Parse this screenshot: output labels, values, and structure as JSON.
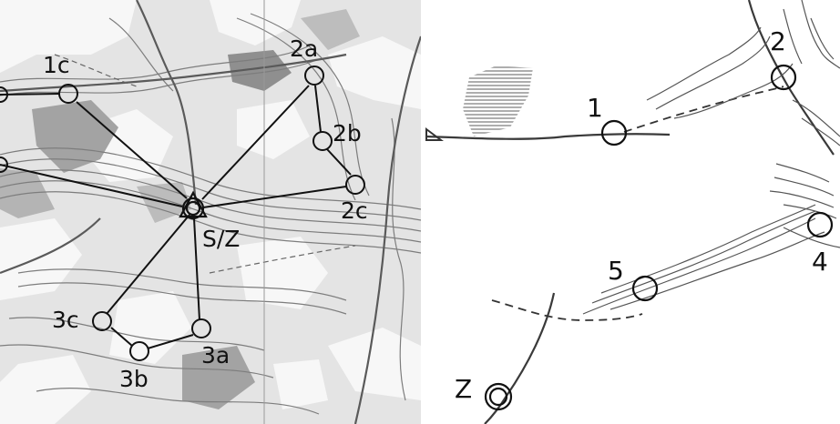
{
  "left_map": {
    "controls": [
      {
        "id": "1c",
        "label": "1c"
      },
      {
        "id": "2a",
        "label": "2a"
      },
      {
        "id": "2b",
        "label": "2b"
      },
      {
        "id": "2c",
        "label": "2c"
      },
      {
        "id": "3a",
        "label": "3a"
      },
      {
        "id": "3b",
        "label": "3b"
      },
      {
        "id": "3c",
        "label": "3c"
      }
    ],
    "start_finish_label": "S/Z"
  },
  "right_map": {
    "controls": [
      {
        "id": "1",
        "label": "1"
      },
      {
        "id": "2",
        "label": "2"
      },
      {
        "id": "4",
        "label": "4"
      },
      {
        "id": "5",
        "label": "5"
      }
    ],
    "finish_label": "Z"
  },
  "colors": {
    "map_background": "#e6e6e6",
    "vegetation_light": "#f4f4f4",
    "vegetation_dark": "#9c9c9c",
    "contour": "#7a7a7a",
    "course_line": "#111111"
  }
}
